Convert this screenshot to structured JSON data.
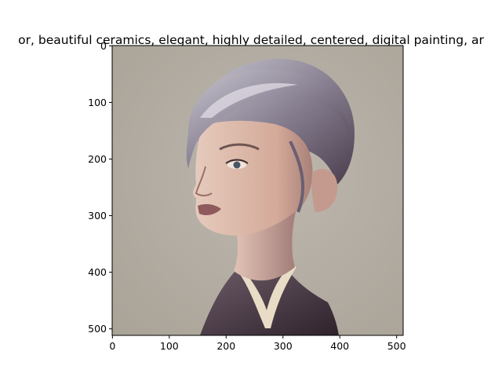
{
  "figure": {
    "title": "or,  beautiful ceramics, elegant, highly detailed, centered, digital painting, ar"
  },
  "image": {
    "subject": "portrait",
    "background_color": "#b3ada3",
    "hair_color": "#8a8494",
    "skin_color": "#d9b4a4",
    "clothing_color": "#3b2d37"
  },
  "axes": {
    "x_ticks": [
      "0",
      "100",
      "200",
      "300",
      "400",
      "500"
    ],
    "y_ticks": [
      "0",
      "100",
      "200",
      "300",
      "400",
      "500"
    ],
    "xlim": [
      0,
      511
    ],
    "ylim": [
      511,
      0
    ]
  }
}
